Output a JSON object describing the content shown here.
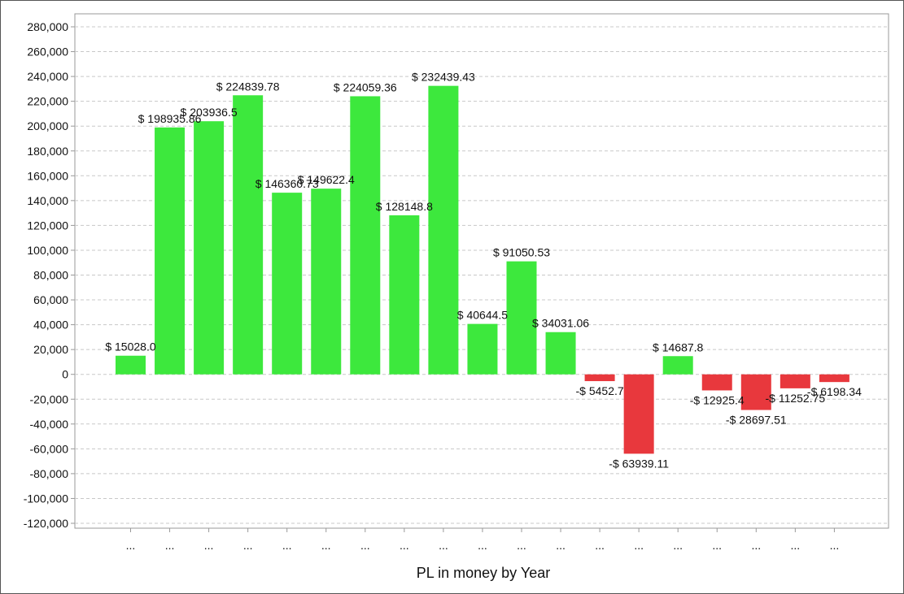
{
  "chart_data": {
    "type": "bar",
    "xlabel": "PL in money by Year",
    "ylabel": "",
    "ylim": [
      -120000,
      280000
    ],
    "yticks": [
      280000,
      260000,
      240000,
      220000,
      200000,
      180000,
      160000,
      140000,
      120000,
      100000,
      80000,
      60000,
      40000,
      20000,
      0,
      -20000,
      -40000,
      -60000,
      -80000,
      -100000,
      -120000
    ],
    "ytick_labels": [
      "280,000",
      "260,000",
      "240,000",
      "220,000",
      "200,000",
      "180,000",
      "160,000",
      "140,000",
      "120,000",
      "100,000",
      "80,000",
      "60,000",
      "40,000",
      "20,000",
      "0",
      "-20,000",
      "-40,000",
      "-60,000",
      "-80,000",
      "-100,000",
      "-120,000"
    ],
    "grid": true,
    "categories": [
      "...",
      "...",
      "...",
      "...",
      "...",
      "...",
      "...",
      "...",
      "...",
      "...",
      "...",
      "...",
      "...",
      "...",
      "...",
      "...",
      "...",
      "...",
      "..."
    ],
    "values": [
      15028.0,
      198935.86,
      203936.5,
      224839.78,
      146360.73,
      149622.4,
      224059.36,
      128148.8,
      232439.43,
      40644.5,
      91050.53,
      34031.06,
      -5452.7,
      -63939.11,
      14687.8,
      -12925.4,
      -28697.51,
      -11252.75,
      -6198.34
    ],
    "data_labels": [
      "$ 15028.0",
      "$ 198935.86",
      "$ 203936.5",
      "$ 224839.78",
      "$ 146360.73",
      "$ 149622.4",
      "$ 224059.36",
      "$ 128148.8",
      "$ 232439.43",
      "$ 40644.5",
      "$ 91050.53",
      "$ 34031.06",
      "-$ 5452.7",
      "-$ 63939.11",
      "$ 14687.8",
      "-$ 12925.4",
      "-$ 28697.51",
      "-$ 11252.75",
      "-$ 6198.34"
    ],
    "colors": {
      "positive": "#3de83d",
      "negative": "#e8383d",
      "grid": "#c8c8c8",
      "axis": "#999999"
    }
  }
}
